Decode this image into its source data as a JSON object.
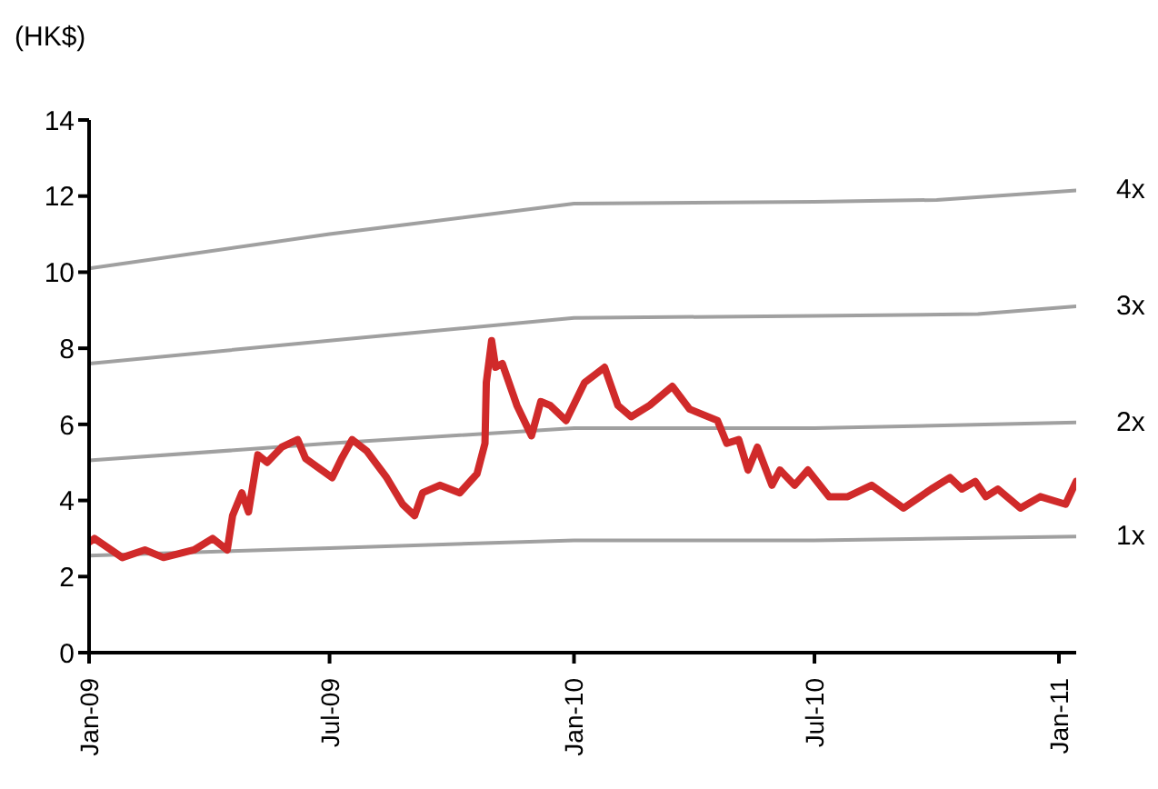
{
  "chart_data": {
    "type": "line",
    "ylabel": "(HK$)",
    "xlim": [
      "2009-01-01",
      "2011-01-14"
    ],
    "xticks": [
      {
        "value": "2009-01-01",
        "label": "Jan-09"
      },
      {
        "value": "2009-07-01",
        "label": "Jul-09"
      },
      {
        "value": "2010-01-01",
        "label": "Jan-10"
      },
      {
        "value": "2010-07-01",
        "label": "Jul-10"
      },
      {
        "value": "2011-01-01",
        "label": "Jan-11"
      }
    ],
    "ylim": [
      0,
      14
    ],
    "yticks": [
      0,
      2,
      4,
      6,
      8,
      10,
      12,
      14
    ],
    "grid": false,
    "legend": false,
    "marker": "none",
    "line_style": "solid",
    "series": [
      {
        "name": "4x",
        "color": "#a0a0a0",
        "x": [
          "2009-01-01",
          "2009-07-01",
          "2010-01-01",
          "2010-07-01",
          "2010-10-01",
          "2011-01-14"
        ],
        "values": [
          10.1,
          11.0,
          11.8,
          11.85,
          11.9,
          12.15
        ]
      },
      {
        "name": "3x",
        "color": "#a0a0a0",
        "x": [
          "2009-01-01",
          "2009-07-01",
          "2010-01-01",
          "2010-07-01",
          "2010-11-01",
          "2011-01-14"
        ],
        "values": [
          7.6,
          8.2,
          8.8,
          8.85,
          8.9,
          9.1
        ]
      },
      {
        "name": "2x",
        "color": "#a0a0a0",
        "x": [
          "2009-01-01",
          "2009-07-01",
          "2010-01-01",
          "2010-07-01",
          "2011-01-14"
        ],
        "values": [
          5.05,
          5.5,
          5.9,
          5.9,
          6.05
        ]
      },
      {
        "name": "1x",
        "color": "#a0a0a0",
        "x": [
          "2009-01-01",
          "2009-07-01",
          "2010-01-01",
          "2010-07-01",
          "2011-01-14"
        ],
        "values": [
          2.55,
          2.75,
          2.95,
          2.95,
          3.05
        ]
      },
      {
        "color": "#d02a2a",
        "x": [
          "2009-01-01",
          "2009-01-05",
          "2009-01-26",
          "2009-02-12",
          "2009-02-26",
          "2009-03-21",
          "2009-04-04",
          "2009-04-15",
          "2009-04-19",
          "2009-04-26",
          "2009-05-01",
          "2009-05-08",
          "2009-05-15",
          "2009-05-26",
          "2009-06-07",
          "2009-06-13",
          "2009-07-03",
          "2009-07-10",
          "2009-07-18",
          "2009-07-29",
          "2009-08-13",
          "2009-08-25",
          "2009-09-03",
          "2009-09-09",
          "2009-09-22",
          "2009-10-07",
          "2009-10-20",
          "2009-10-26",
          "2009-10-27",
          "2009-10-31",
          "2009-11-03",
          "2009-11-08",
          "2009-11-19",
          "2009-11-30",
          "2009-12-07",
          "2009-12-14",
          "2009-12-26",
          "2010-01-09",
          "2010-01-24",
          "2010-02-03",
          "2010-02-13",
          "2010-02-27",
          "2010-03-16",
          "2010-03-29",
          "2010-04-19",
          "2010-04-26",
          "2010-05-05",
          "2010-05-12",
          "2010-05-19",
          "2010-05-30",
          "2010-06-05",
          "2010-06-16",
          "2010-06-26",
          "2010-07-12",
          "2010-07-26",
          "2010-08-13",
          "2010-09-06",
          "2010-09-27",
          "2010-10-11",
          "2010-10-20",
          "2010-10-30",
          "2010-11-07",
          "2010-11-16",
          "2010-12-03",
          "2010-12-18",
          "2011-01-06",
          "2011-01-14"
        ],
        "values": [
          2.9,
          3.0,
          2.5,
          2.7,
          2.5,
          2.7,
          3.0,
          2.7,
          3.6,
          4.2,
          3.7,
          5.2,
          5.0,
          5.4,
          5.6,
          5.1,
          4.6,
          5.1,
          5.6,
          5.3,
          4.6,
          3.9,
          3.6,
          4.2,
          4.4,
          4.2,
          4.7,
          5.5,
          7.1,
          8.2,
          7.5,
          7.6,
          6.5,
          5.7,
          6.6,
          6.5,
          6.1,
          7.1,
          7.5,
          6.5,
          6.2,
          6.5,
          7.0,
          6.4,
          6.1,
          5.5,
          5.6,
          4.8,
          5.4,
          4.4,
          4.8,
          4.4,
          4.8,
          4.1,
          4.1,
          4.4,
          3.8,
          4.3,
          4.6,
          4.3,
          4.5,
          4.1,
          4.3,
          3.8,
          4.1,
          3.9,
          4.5
        ]
      }
    ]
  }
}
